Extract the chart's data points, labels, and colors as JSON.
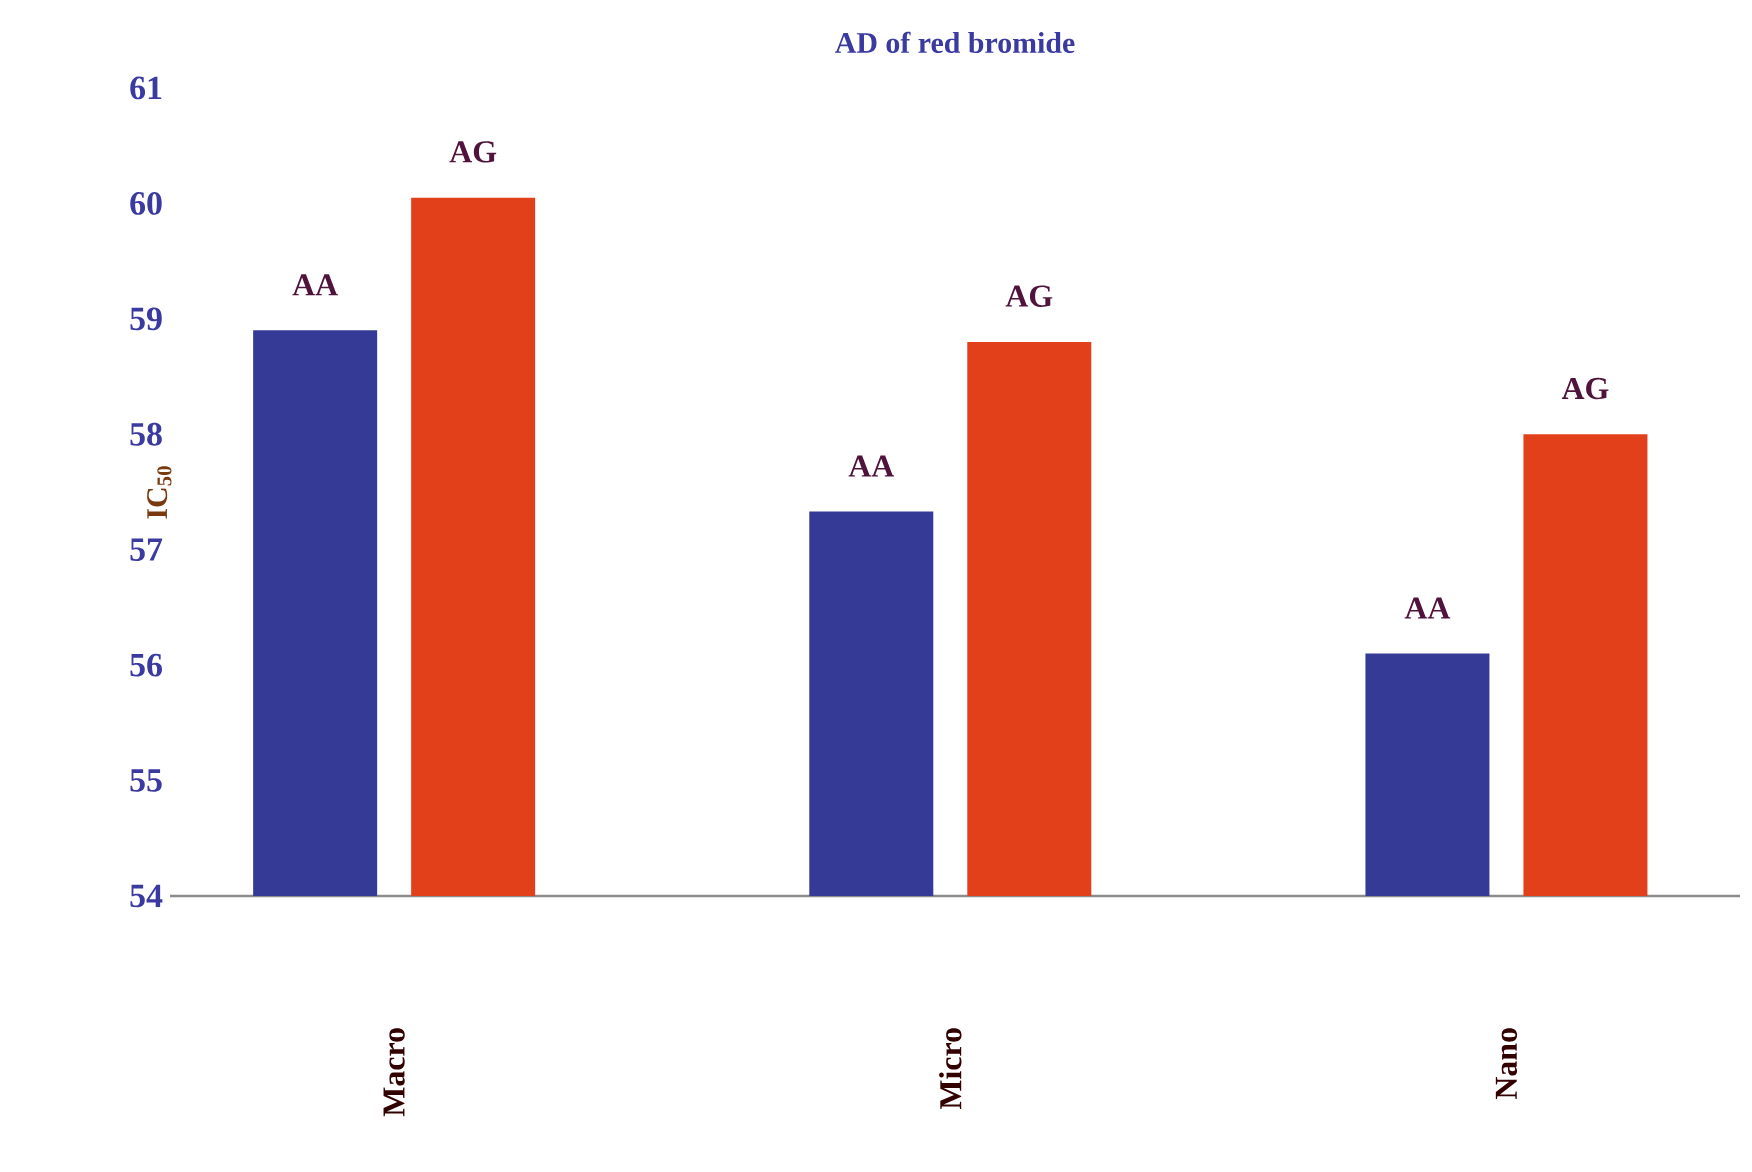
{
  "chart_data": {
    "type": "bar",
    "title": "AD of red bromide",
    "ylabel": "IC$_{50}$",
    "categories": [
      "Macro",
      "Micro",
      "Nano"
    ],
    "series": [
      {
        "name": "AA",
        "color": "#343a96",
        "values": [
          58.9,
          57.33,
          56.1
        ]
      },
      {
        "name": "AG",
        "color": "#e2401b",
        "values": [
          60.05,
          58.8,
          58.0
        ]
      }
    ],
    "ylim": [
      54,
      61
    ],
    "yticks": [
      54,
      55,
      56,
      57,
      58,
      59,
      60,
      61
    ],
    "grid": false
  }
}
